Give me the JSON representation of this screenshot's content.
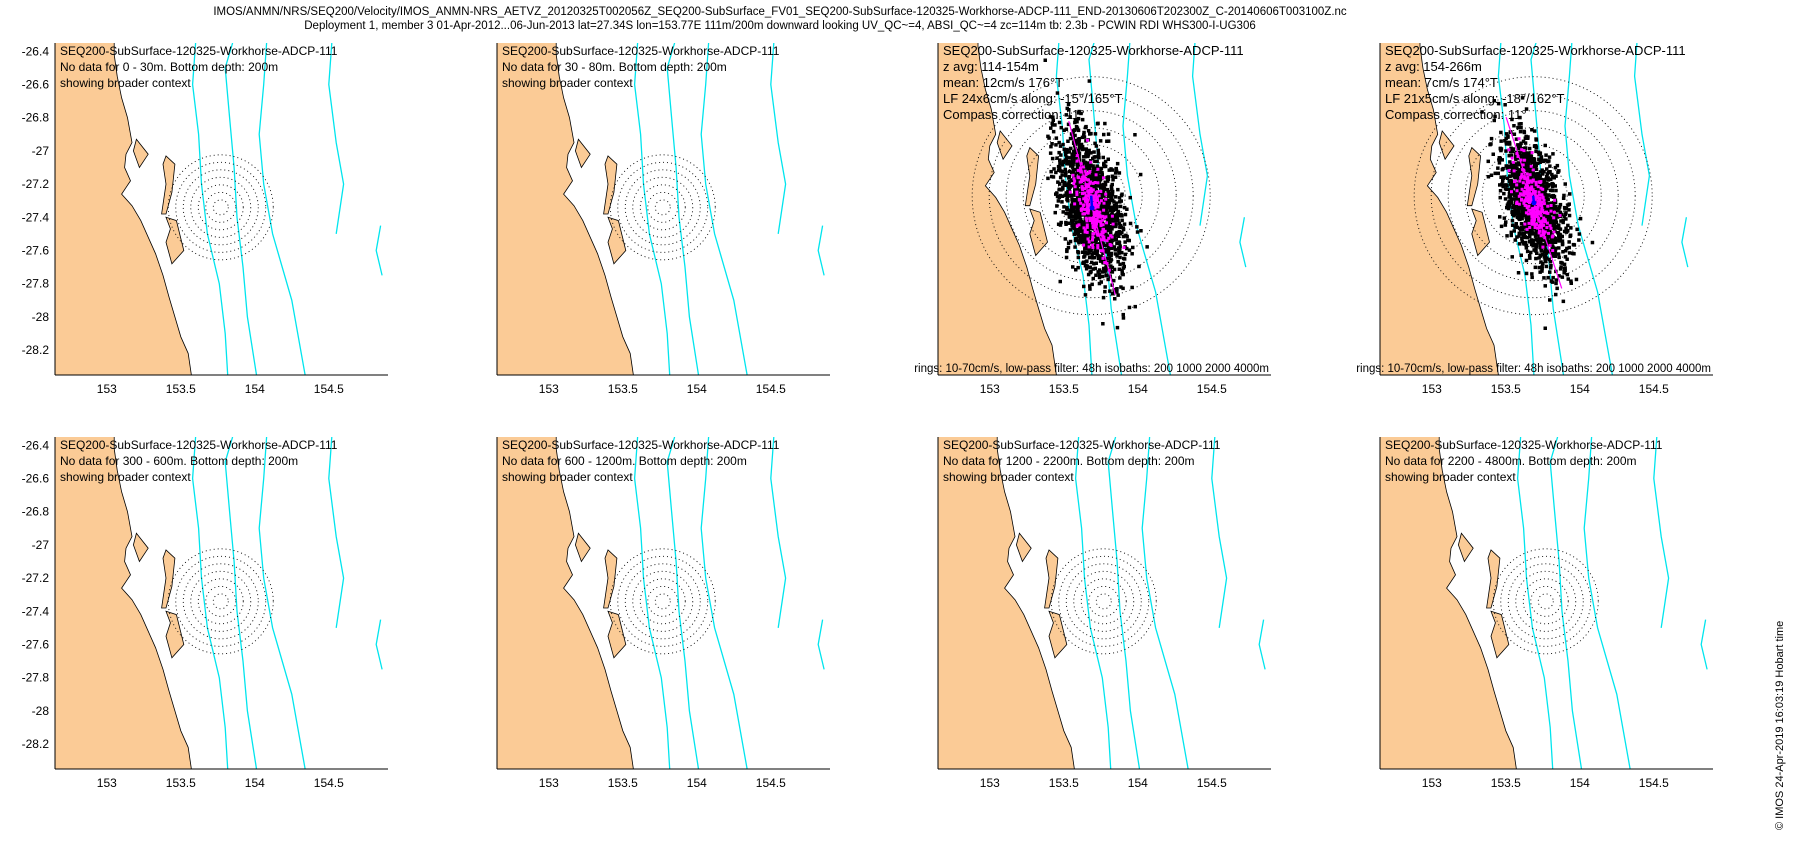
{
  "header": {
    "line1": "IMOS/ANMN/NRS/SEQ200/Velocity/IMOS_ANMN-NRS_AETVZ_20120325T002056Z_SEQ200-SubSurface_FV01_SEQ200-SubSurface-120325-Workhorse-ADCP-111_END-20130606T202300Z_C-20140606T003100Z.nc",
    "line2": "Deployment 1, member 3 01-Apr-2012...06-Jun-2013 lat=27.34S lon=153.77E 111m/200m downward looking UV_QC~=4, ABSI_QC~=4 zc=114m tb: 2.3b - PCWIN RDI WHS300-I-UG306"
  },
  "timestamp": "© IMOS 24-Apr-2019 16:03:19 Hobart time",
  "colors": {
    "land": "#fbcb96",
    "isobath": "#00e5ee",
    "points": "#000000",
    "lowpass": "#ff00ff",
    "mean_vector": "#0000ff"
  },
  "chart_data": [
    {
      "type": "scatter",
      "panel": 1,
      "xlim": [
        152.65,
        154.9
      ],
      "ylim": [
        -28.35,
        -26.35
      ],
      "xticks": [
        "153",
        "153.5",
        "154",
        "154.5"
      ],
      "yticks": [
        "-26.4",
        "-26.6",
        "-26.8",
        "-27",
        "-27.2",
        "-27.4",
        "-27.6",
        "-27.8",
        "-28",
        "-28.2"
      ],
      "annotations": [
        "SEQ200-SubSurface-120325-Workhorse-ADCP-111",
        "No data for 0 - 30m. Bottom depth: 200m",
        "showing broader context"
      ],
      "footer": "",
      "has_data": false
    },
    {
      "type": "scatter",
      "panel": 2,
      "xlim": [
        152.65,
        154.9
      ],
      "ylim": [
        -28.35,
        -26.35
      ],
      "xticks": [
        "153",
        "153.5",
        "154",
        "154.5"
      ],
      "yticks": [],
      "annotations": [
        "SEQ200-SubSurface-120325-Workhorse-ADCP-111",
        "No data for 30 - 80m. Bottom depth: 200m",
        "showing broader context"
      ],
      "footer": "",
      "has_data": false
    },
    {
      "type": "scatter",
      "panel": 3,
      "xlim": [
        152.65,
        154.9
      ],
      "ylim": [
        -28.35,
        -26.35
      ],
      "xticks": [
        "153",
        "153.5",
        "154",
        "154.5"
      ],
      "yticks": [],
      "annotations": [
        "SEQ200-SubSurface-120325-Workhorse-ADCP-111",
        "z avg: 114-154m",
        "mean: 12cm/s 176°T",
        "LF 24x6cm/s along: -15°/165°T",
        "Compass correction: 11°"
      ],
      "footer": "rings: 10-70cm/s, low-pass filter: 48h isobaths: 200 1000 2000 4000m",
      "has_data": true,
      "point_count": 1400,
      "mean_speed_cms": 12,
      "mean_dir_degT": 176,
      "lf_major_cms": 24,
      "lf_minor_cms": 6,
      "along_dir_degT": 165,
      "spread_major_cms": 45,
      "spread_minor_cms": 17
    },
    {
      "type": "scatter",
      "panel": 4,
      "xlim": [
        152.65,
        154.9
      ],
      "ylim": [
        -28.35,
        -26.35
      ],
      "xticks": [
        "153",
        "153.5",
        "154",
        "154.5"
      ],
      "yticks": [],
      "annotations": [
        "SEQ200-SubSurface-120325-Workhorse-ADCP-111",
        "z avg: 154-266m",
        "mean: 7cm/s 174°T",
        "LF 21x5cm/s along: -18°/162°T",
        "Compass correction: 11°"
      ],
      "footer": "rings: 10-70cm/s, low-pass filter: 48h isobaths: 200 1000 2000 4000m",
      "has_data": true,
      "point_count": 1400,
      "mean_speed_cms": 7,
      "mean_dir_degT": 174,
      "lf_major_cms": 21,
      "lf_minor_cms": 5,
      "along_dir_degT": 162,
      "spread_major_cms": 40,
      "spread_minor_cms": 15
    },
    {
      "type": "scatter",
      "panel": 5,
      "xlim": [
        152.65,
        154.9
      ],
      "ylim": [
        -28.35,
        -26.35
      ],
      "xticks": [
        "153",
        "153.5",
        "154",
        "154.5"
      ],
      "yticks": [
        "-26.4",
        "-26.6",
        "-26.8",
        "-27",
        "-27.2",
        "-27.4",
        "-27.6",
        "-27.8",
        "-28",
        "-28.2"
      ],
      "annotations": [
        "SEQ200-SubSurface-120325-Workhorse-ADCP-111",
        "No data for 300 - 600m. Bottom depth: 200m",
        "showing broader context"
      ],
      "footer": "",
      "has_data": false
    },
    {
      "type": "scatter",
      "panel": 6,
      "xlim": [
        152.65,
        154.9
      ],
      "ylim": [
        -28.35,
        -26.35
      ],
      "xticks": [
        "153",
        "153.5",
        "154",
        "154.5"
      ],
      "yticks": [],
      "annotations": [
        "SEQ200-SubSurface-120325-Workhorse-ADCP-111",
        "No data for 600 - 1200m. Bottom depth: 200m",
        "showing broader context"
      ],
      "footer": "",
      "has_data": false
    },
    {
      "type": "scatter",
      "panel": 7,
      "xlim": [
        152.65,
        154.9
      ],
      "ylim": [
        -28.35,
        -26.35
      ],
      "xticks": [
        "153",
        "153.5",
        "154",
        "154.5"
      ],
      "yticks": [],
      "annotations": [
        "SEQ200-SubSurface-120325-Workhorse-ADCP-111",
        "No data for 1200 - 2200m. Bottom depth: 200m",
        "showing broader context"
      ],
      "footer": "",
      "has_data": false
    },
    {
      "type": "scatter",
      "panel": 8,
      "xlim": [
        152.65,
        154.9
      ],
      "ylim": [
        -28.35,
        -26.35
      ],
      "xticks": [
        "153",
        "153.5",
        "154",
        "154.5"
      ],
      "yticks": [],
      "annotations": [
        "SEQ200-SubSurface-120325-Workhorse-ADCP-111",
        "No data for 2200 - 4800m. Bottom depth: 200m",
        "showing broader context"
      ],
      "footer": "",
      "has_data": false
    }
  ]
}
